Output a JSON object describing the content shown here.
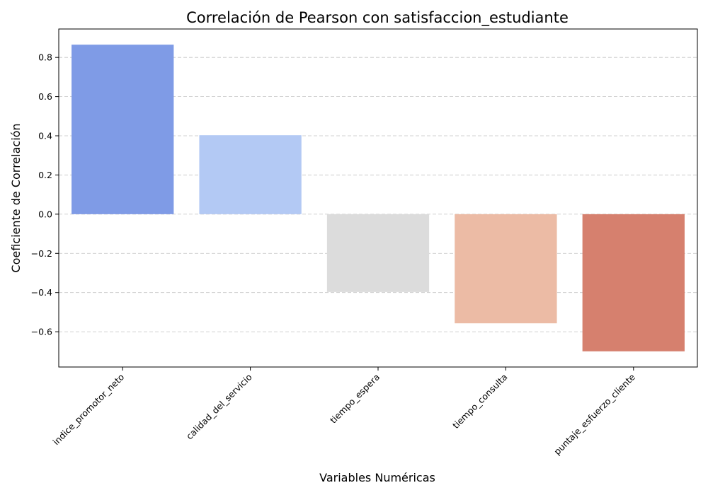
{
  "chart_data": {
    "type": "bar",
    "title": "Correlación de Pearson con satisfaccion_estudiante",
    "xlabel": "Variables Numéricas",
    "ylabel": "Coeficiente de Correlación",
    "categories": [
      "indice_promotor_neto",
      "calidad_del_servicio",
      "tiempo_espera",
      "tiempo_consulta",
      "puntaje_esfuerzo_cliente"
    ],
    "values": [
      0.865,
      0.403,
      -0.397,
      -0.557,
      -0.7
    ],
    "colors": [
      "#7f9be6",
      "#b3c9f4",
      "#dcdcdc",
      "#ecbba5",
      "#d6806e"
    ],
    "ylim": [
      -0.78,
      0.945
    ],
    "yticks": [
      -0.6,
      -0.4,
      -0.2,
      0.0,
      0.2,
      0.4,
      0.6,
      0.8
    ],
    "ytick_labels": [
      "−0.6",
      "−0.4",
      "−0.2",
      "0.0",
      "0.2",
      "0.4",
      "0.6",
      "0.8"
    ],
    "grid": true
  }
}
